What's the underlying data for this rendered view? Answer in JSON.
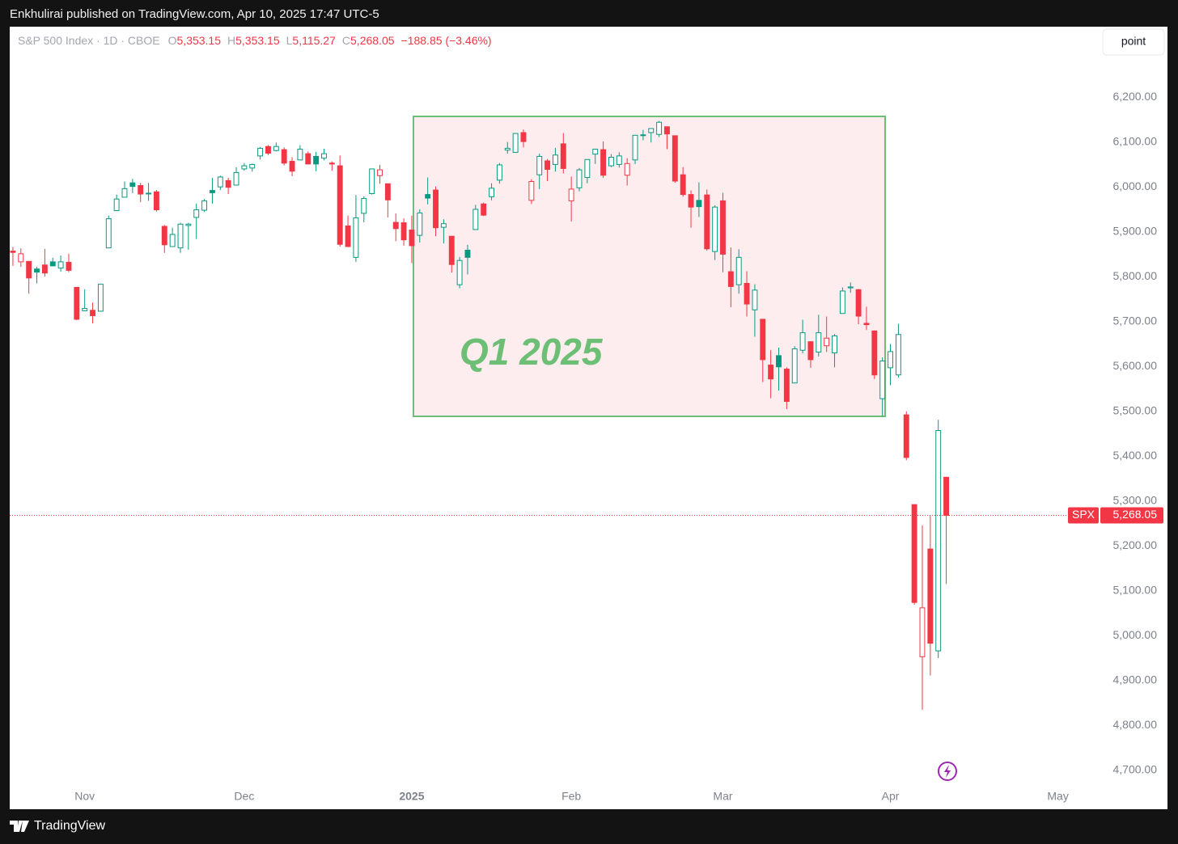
{
  "header": {
    "publisher": "Enkhulirai published on TradingView.com, Apr 10, 2025 17:47 UTC-5"
  },
  "footer": {
    "brand": "TradingView"
  },
  "toolbar": {
    "button": "point"
  },
  "chart_data": {
    "type": "candlestick",
    "symbol_line": "S&P 500 Index · 1D · CBOE",
    "ohlc_legend": [
      {
        "key": "O",
        "value": "5,353.15"
      },
      {
        "key": "H",
        "value": "5,353.15"
      },
      {
        "key": "L",
        "value": "5,115.27"
      },
      {
        "key": "C",
        "value": "5,268.05"
      }
    ],
    "change": "−188.85 (−3.46%)",
    "annotation": "Q1 2025",
    "last_symbol": "SPX",
    "last_price": {
      "value": 5268.05,
      "label": "5,268.05"
    },
    "up_color": "#089981",
    "down_color": "#f23645",
    "box_color": "#6dbf76",
    "xlim": [
      -0.4,
      135.3
    ],
    "xticks": [
      {
        "value": 9,
        "label": "Nov"
      },
      {
        "value": 29,
        "label": "Dec"
      },
      {
        "value": 50,
        "label": "2025"
      },
      {
        "value": 70,
        "label": "Feb"
      },
      {
        "value": 89,
        "label": "Mar"
      },
      {
        "value": 110,
        "label": "Apr"
      },
      {
        "value": 131,
        "label": "May"
      }
    ],
    "ylim": [
      4669,
      6357
    ],
    "yticks": [
      {
        "value": 4700,
        "label": "4,700.00"
      },
      {
        "value": 4800,
        "label": "4,800.00"
      },
      {
        "value": 4900,
        "label": "4,900.00"
      },
      {
        "value": 5000,
        "label": "5,000.00"
      },
      {
        "value": 5100,
        "label": "5,100.00"
      },
      {
        "value": 5200,
        "label": "5,200.00"
      },
      {
        "value": 5300,
        "label": "5,300.00"
      },
      {
        "value": 5400,
        "label": "5,400.00"
      },
      {
        "value": 5500,
        "label": "5,500.00"
      },
      {
        "value": 5600,
        "label": "5,600.00"
      },
      {
        "value": 5700,
        "label": "5,700.00"
      },
      {
        "value": 5800,
        "label": "5,800.00"
      },
      {
        "value": 5900,
        "label": "5,900.00"
      },
      {
        "value": 6000,
        "label": "6,000.00"
      },
      {
        "value": 6100,
        "label": "6,100.00"
      },
      {
        "value": 6200,
        "label": "6,200.00"
      }
    ],
    "open": [
      5857,
      5833,
      5834,
      5817,
      5826,
      5833,
      5819,
      5832,
      5776,
      5724,
      5725,
      5723,
      5864,
      5947,
      5977,
      6009,
      6003,
      5986,
      5989,
      5912,
      5867,
      5864,
      5914,
      5932,
      5948,
      5992,
      6000,
      6014,
      6004,
      6040,
      6042,
      6069,
      6090,
      6081,
      6083,
      6057,
      6060,
      6074,
      6068,
      6064,
      6053,
      6047,
      5913,
      5843,
      5941,
      5985,
      6025,
      6007,
      5921,
      5920,
      5904,
      5892,
      5983,
      5993,
      5910,
      5890,
      5782,
      5859,
      5905,
      5962,
      5978,
      6015,
      6082,
      6077,
      6121,
      5970,
      6027,
      6058,
      6050,
      6096,
      5969,
      5998,
      6021,
      6073,
      6083,
      6047,
      6050,
      6026,
      6060,
      6116,
      6121,
      6117,
      6134,
      6114,
      6027,
      5983,
      5970,
      5982,
      5856,
      5969,
      5811,
      5782,
      5785,
      5726,
      5705,
      5603,
      5624,
      5594,
      5563,
      5636,
      5655,
      5632,
      5646,
      5630,
      5718,
      5775,
      5771,
      5696,
      5679,
      5528,
      5597,
      5581,
      5492,
      5292,
      4953,
      5193,
      4966,
      5353
    ],
    "high": [
      5866,
      5863,
      5834,
      5822,
      5862,
      5842,
      5847,
      5851,
      5776,
      5772,
      5742,
      5783,
      5936,
      5983,
      6012,
      6018,
      6009,
      6009,
      5993,
      5915,
      5909,
      5920,
      5920,
      5963,
      5973,
      6020,
      6025,
      6020,
      6044,
      6053,
      6052,
      6089,
      6093,
      6099,
      6088,
      6066,
      6093,
      6079,
      6078,
      6085,
      6057,
      6070,
      5936,
      5982,
      5979,
      6041,
      6049,
      6007,
      5941,
      5930,
      5936,
      5950,
      6021,
      6001,
      5928,
      5890,
      5844,
      5871,
      5960,
      5965,
      6008,
      6053,
      6100,
      6119,
      6128,
      6017,
      6074,
      6062,
      6087,
      6120,
      6023,
      6042,
      6062,
      6084,
      6101,
      6073,
      6077,
      6064,
      6116,
      6127,
      6130,
      6147,
      6134,
      6114,
      6044,
      5992,
      6010,
      5994,
      5959,
      5987,
      5865,
      5861,
      5812,
      5783,
      5705,
      5636,
      5642,
      5598,
      5645,
      5704,
      5655,
      5715,
      5711,
      5672,
      5776,
      5787,
      5772,
      5733,
      5680,
      5620,
      5650,
      5695,
      5500,
      5292,
      5246,
      5267,
      5481,
      5353
    ],
    "low": [
      5824,
      5822,
      5762,
      5785,
      5800,
      5823,
      5811,
      5810,
      5703,
      5723,
      5696,
      5723,
      5864,
      5947,
      5977,
      5986,
      5966,
      5969,
      5945,
      5853,
      5867,
      5853,
      5860,
      5884,
      5944,
      5963,
      5993,
      5984,
      6004,
      6036,
      6034,
      6061,
      6071,
      6079,
      6048,
      6024,
      6060,
      6051,
      6035,
      6059,
      6036,
      5867,
      5866,
      5833,
      5921,
      5983,
      6007,
      5932,
      5879,
      5869,
      5830,
      5876,
      5961,
      5890,
      5874,
      5809,
      5774,
      5805,
      5905,
      5935,
      5970,
      6007,
      6074,
      6076,
      6088,
      5962,
      5995,
      6013,
      6034,
      6030,
      5923,
      5990,
      6008,
      6051,
      6020,
      6044,
      6043,
      6003,
      6051,
      6104,
      6099,
      6111,
      6084,
      6009,
      5978,
      5909,
      5933,
      5858,
      5837,
      5810,
      5732,
      5762,
      5711,
      5666,
      5565,
      5529,
      5546,
      5505,
      5563,
      5629,
      5597,
      5622,
      5632,
      5598,
      5718,
      5764,
      5694,
      5681,
      5572,
      5489,
      5558,
      5575,
      5391,
      5069,
      4835,
      4911,
      4950,
      5115
    ],
    "close": [
      5854,
      5851,
      5797,
      5810,
      5808,
      5824,
      5833,
      5814,
      5705,
      5729,
      5713,
      5783,
      5929,
      5973,
      5996,
      6001,
      5984,
      5985,
      5949,
      5871,
      5894,
      5917,
      5917,
      5949,
      5969,
      5987,
      6022,
      5999,
      6032,
      6047,
      6050,
      6086,
      6075,
      6090,
      6053,
      6035,
      6084,
      6051,
      6051,
      6074,
      6051,
      5872,
      5867,
      5931,
      5974,
      6040,
      6038,
      5971,
      5907,
      5882,
      5869,
      5942,
      5975,
      5909,
      5918,
      5827,
      5836,
      5843,
      5950,
      5937,
      5997,
      6049,
      6086,
      6119,
      6101,
      6012,
      6068,
      6039,
      6071,
      6041,
      5995,
      6038,
      6061,
      6084,
      6026,
      6066,
      6069,
      6052,
      6115,
      6115,
      6130,
      6144,
      6118,
      6013,
      5983,
      5955,
      5956,
      5862,
      5955,
      5850,
      5778,
      5843,
      5739,
      5770,
      5615,
      5572,
      5599,
      5522,
      5639,
      5675,
      5615,
      5675,
      5663,
      5668,
      5768,
      5777,
      5712,
      5693,
      5581,
      5612,
      5633,
      5671,
      5397,
      5074,
      5062,
      4983,
      5457,
      5268.05
    ]
  }
}
